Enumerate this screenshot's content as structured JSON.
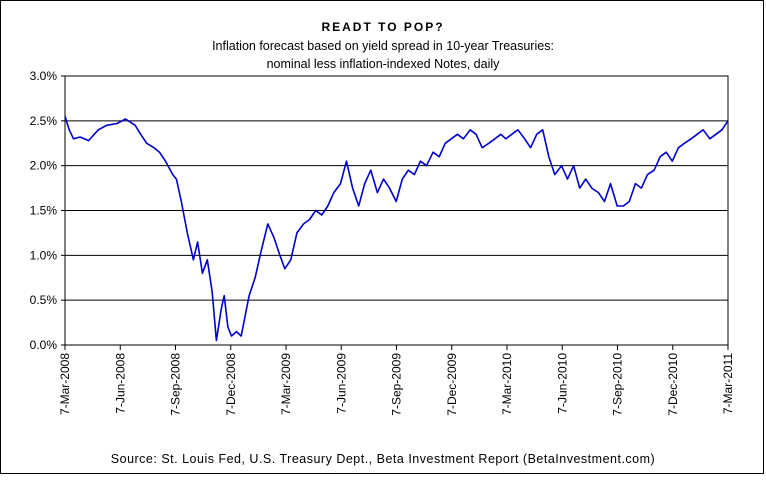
{
  "chart_data": {
    "type": "line",
    "title": "READT TO POP?",
    "subtitle_lines": [
      "Inflation forecast based on yield spread in 10-year Treasuries:",
      "nominal less inflation-indexed Notes, daily"
    ],
    "source": "Source: St. Louis Fed, U.S. Treasury Dept., Beta Investment Report (BetaInvestment.com)",
    "ylim": [
      0,
      3
    ],
    "y_ticks": [
      0,
      0.5,
      1,
      1.5,
      2,
      2.5,
      3
    ],
    "y_tick_labels": [
      "0.0%",
      "0.5%",
      "1.0%",
      "1.5%",
      "2.0%",
      "2.5%",
      "3.0%"
    ],
    "x_tick_labels": [
      "7-Mar-2008",
      "7-Jun-2008",
      "7-Sep-2008",
      "7-Dec-2008",
      "7-Mar-2009",
      "7-Jun-2009",
      "7-Sep-2009",
      "7-Dec-2009",
      "7-Mar-2010",
      "7-Jun-2010",
      "7-Sep-2010",
      "7-Dec-2010",
      "7-Mar-2011"
    ],
    "grid": "horizontal",
    "legend": "none",
    "line_color": "#0000cc",
    "series": [
      {
        "x": [
          "2008-03-07",
          "2008-03-14",
          "2008-03-21",
          "2008-04-01",
          "2008-04-15",
          "2008-05-01",
          "2008-05-15",
          "2008-06-01",
          "2008-06-15",
          "2008-07-01",
          "2008-07-10",
          "2008-07-20",
          "2008-08-01",
          "2008-08-10",
          "2008-08-20",
          "2008-09-01",
          "2008-09-07",
          "2008-09-15",
          "2008-09-25",
          "2008-10-05",
          "2008-10-12",
          "2008-10-20",
          "2008-10-28",
          "2008-11-05",
          "2008-11-12",
          "2008-11-20",
          "2008-11-25",
          "2008-12-01",
          "2008-12-07",
          "2008-12-15",
          "2008-12-23",
          "2009-01-05",
          "2009-01-15",
          "2009-01-25",
          "2009-02-05",
          "2009-02-15",
          "2009-02-25",
          "2009-03-05",
          "2009-03-15",
          "2009-03-25",
          "2009-04-05",
          "2009-04-15",
          "2009-04-25",
          "2009-05-05",
          "2009-05-15",
          "2009-05-25",
          "2009-06-05",
          "2009-06-15",
          "2009-06-25",
          "2009-07-05",
          "2009-07-15",
          "2009-07-25",
          "2009-08-05",
          "2009-08-15",
          "2009-08-25",
          "2009-09-05",
          "2009-09-15",
          "2009-09-25",
          "2009-10-05",
          "2009-10-15",
          "2009-10-25",
          "2009-11-05",
          "2009-11-15",
          "2009-11-25",
          "2009-12-05",
          "2009-12-15",
          "2009-12-25",
          "2010-01-05",
          "2010-01-15",
          "2010-01-25",
          "2010-02-05",
          "2010-02-15",
          "2010-02-25",
          "2010-03-05",
          "2010-03-15",
          "2010-03-25",
          "2010-04-05",
          "2010-04-15",
          "2010-04-25",
          "2010-05-05",
          "2010-05-15",
          "2010-05-25",
          "2010-06-05",
          "2010-06-15",
          "2010-06-25",
          "2010-07-05",
          "2010-07-15",
          "2010-07-25",
          "2010-08-05",
          "2010-08-15",
          "2010-08-25",
          "2010-09-05",
          "2010-09-15",
          "2010-09-25",
          "2010-10-05",
          "2010-10-15",
          "2010-10-25",
          "2010-11-05",
          "2010-11-15",
          "2010-11-25",
          "2010-12-05",
          "2010-12-15",
          "2010-12-25",
          "2011-01-05",
          "2011-01-15",
          "2011-01-25",
          "2011-02-05",
          "2011-02-15",
          "2011-02-25",
          "2011-03-07"
        ],
        "y": [
          2.55,
          2.4,
          2.3,
          2.32,
          2.28,
          2.4,
          2.45,
          2.47,
          2.52,
          2.45,
          2.35,
          2.25,
          2.2,
          2.15,
          2.05,
          1.9,
          1.85,
          1.6,
          1.25,
          0.95,
          1.15,
          0.8,
          0.95,
          0.6,
          0.05,
          0.4,
          0.55,
          0.2,
          0.1,
          0.15,
          0.1,
          0.55,
          0.75,
          1.05,
          1.35,
          1.2,
          1.0,
          0.85,
          0.95,
          1.25,
          1.35,
          1.4,
          1.5,
          1.45,
          1.55,
          1.7,
          1.8,
          2.05,
          1.75,
          1.55,
          1.8,
          1.95,
          1.7,
          1.85,
          1.75,
          1.6,
          1.85,
          1.95,
          1.9,
          2.05,
          2.0,
          2.15,
          2.1,
          2.25,
          2.3,
          2.35,
          2.3,
          2.4,
          2.35,
          2.2,
          2.25,
          2.3,
          2.35,
          2.3,
          2.35,
          2.4,
          2.3,
          2.2,
          2.35,
          2.4,
          2.1,
          1.9,
          2.0,
          1.85,
          2.0,
          1.75,
          1.85,
          1.75,
          1.7,
          1.6,
          1.8,
          1.55,
          1.55,
          1.6,
          1.8,
          1.75,
          1.9,
          1.95,
          2.1,
          2.15,
          2.05,
          2.2,
          2.25,
          2.3,
          2.35,
          2.4,
          2.3,
          2.35,
          2.4,
          2.5
        ]
      }
    ]
  }
}
